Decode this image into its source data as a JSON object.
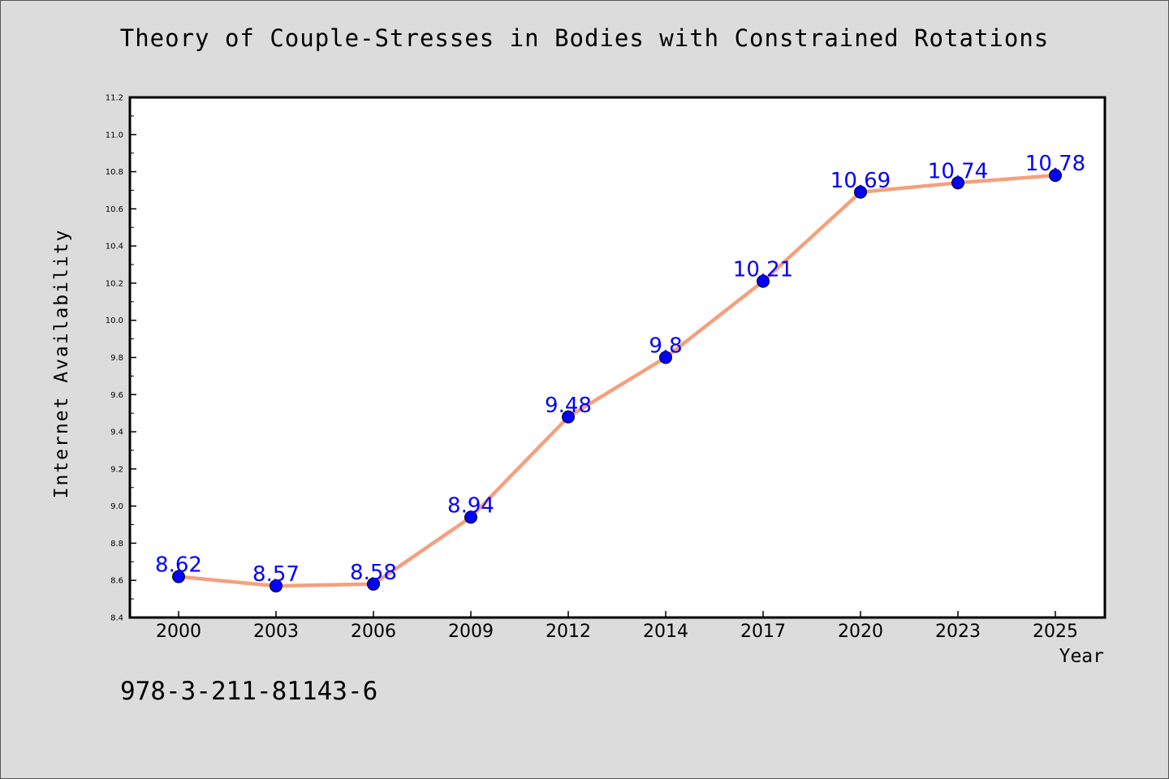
{
  "chart_data": {
    "type": "line",
    "title": "Theory of Couple-Stresses in Bodies with Constrained Rotations",
    "xlabel": "Year",
    "ylabel": "Internet Availability",
    "categories": [
      "2000",
      "2003",
      "2006",
      "2009",
      "2012",
      "2014",
      "2017",
      "2020",
      "2023",
      "2025"
    ],
    "series": [
      {
        "values": [
          8.62,
          8.57,
          8.58,
          8.94,
          9.48,
          9.8,
          10.21,
          10.69,
          10.74,
          10.78
        ],
        "data_labels": [
          "8.62",
          "8.57",
          "8.58",
          "8.94",
          "9.48",
          "9.8",
          "10.21",
          "10.69",
          "10.74",
          "10.78"
        ],
        "line_color": "#f4a07e",
        "marker_color": "#0000ff",
        "label_color": "#0000ff"
      }
    ],
    "ylim": [
      8.4,
      11.2
    ],
    "yticks": [
      "8.4",
      "8.6",
      "8.8",
      "9.0",
      "9.2",
      "9.4",
      "9.6",
      "9.8",
      "10.0",
      "10.2",
      "10.4",
      "10.6",
      "10.8",
      "11.0",
      "11.2"
    ],
    "grid": false,
    "legend": "none"
  },
  "footer_text": "978-3-211-81143-6",
  "colors": {
    "background": "#dcdcdc",
    "plot_background": "#ffffff",
    "axis": "#000000"
  }
}
